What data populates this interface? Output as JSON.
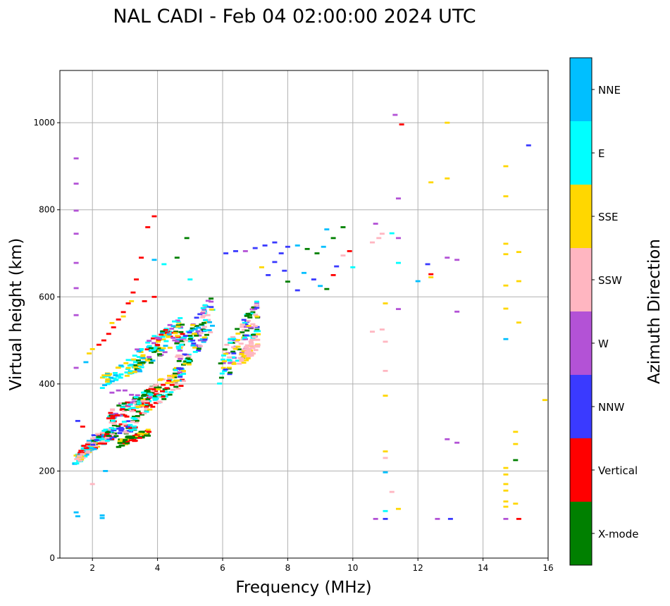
{
  "chart_data": {
    "type": "scatter",
    "title": "NAL CADI - Feb 04 02:00:00 2024 UTC",
    "xlabel": "Frequency (MHz)",
    "ylabel": "Virtual height (km)",
    "xlim": [
      1.0,
      16.0
    ],
    "ylim": [
      0,
      1120
    ],
    "xticks": [
      2,
      4,
      6,
      8,
      10,
      12,
      14,
      16
    ],
    "yticks": [
      0,
      200,
      400,
      600,
      800,
      1000
    ],
    "grid": true,
    "colorbar": {
      "label": "Azimuth Direction",
      "categories": [
        {
          "name": "X-mode",
          "color": "#008000"
        },
        {
          "name": "Vertical",
          "color": "#ff0000"
        },
        {
          "name": "NNW",
          "color": "#3a3aff"
        },
        {
          "name": "W",
          "color": "#b352d6"
        },
        {
          "name": "SSW",
          "color": "#ffb6c1"
        },
        {
          "name": "SSE",
          "color": "#ffd700"
        },
        {
          "name": "E",
          "color": "#00ffff"
        },
        {
          "name": "NNE",
          "color": "#00bfff"
        }
      ]
    },
    "echoes": [
      {
        "f": 1.5,
        "h": 918,
        "az": "W"
      },
      {
        "f": 1.5,
        "h": 860,
        "az": "W"
      },
      {
        "f": 1.5,
        "h": 798,
        "az": "W"
      },
      {
        "f": 1.5,
        "h": 745,
        "az": "W"
      },
      {
        "f": 1.5,
        "h": 678,
        "az": "W"
      },
      {
        "f": 1.5,
        "h": 620,
        "az": "W"
      },
      {
        "f": 1.5,
        "h": 558,
        "az": "W"
      },
      {
        "f": 1.5,
        "h": 437,
        "az": "W"
      },
      {
        "f": 1.5,
        "h": 105,
        "az": "NNE"
      },
      {
        "f": 1.55,
        "h": 96,
        "az": "NNE"
      },
      {
        "f": 2.3,
        "h": 98,
        "az": "NNE"
      },
      {
        "f": 2.3,
        "h": 92,
        "az": "NNE"
      },
      {
        "f": 1.55,
        "h": 315,
        "az": "NNW"
      },
      {
        "f": 1.7,
        "h": 302,
        "az": "Vertical"
      },
      {
        "f": 2.0,
        "h": 170,
        "az": "SSW"
      },
      {
        "f": 2.4,
        "h": 200,
        "az": "NNE"
      },
      {
        "f": 2.2,
        "h": 490,
        "az": "Vertical"
      },
      {
        "f": 2.35,
        "h": 500,
        "az": "Vertical"
      },
      {
        "f": 2.5,
        "h": 515,
        "az": "Vertical"
      },
      {
        "f": 2.65,
        "h": 530,
        "az": "Vertical"
      },
      {
        "f": 2.8,
        "h": 548,
        "az": "Vertical"
      },
      {
        "f": 2.95,
        "h": 565,
        "az": "Vertical"
      },
      {
        "f": 3.1,
        "h": 585,
        "az": "Vertical"
      },
      {
        "f": 3.25,
        "h": 610,
        "az": "Vertical"
      },
      {
        "f": 3.35,
        "h": 640,
        "az": "Vertical"
      },
      {
        "f": 2.0,
        "h": 480,
        "az": "SSE"
      },
      {
        "f": 2.6,
        "h": 540,
        "az": "SSE"
      },
      {
        "f": 2.95,
        "h": 555,
        "az": "SSE"
      },
      {
        "f": 3.2,
        "h": 590,
        "az": "SSE"
      },
      {
        "f": 1.9,
        "h": 470,
        "az": "SSE"
      },
      {
        "f": 1.8,
        "h": 450,
        "az": "NNE"
      },
      {
        "f": 2.5,
        "h": 410,
        "az": "E"
      },
      {
        "f": 2.7,
        "h": 425,
        "az": "E"
      },
      {
        "f": 2.9,
        "h": 440,
        "az": "E"
      },
      {
        "f": 3.1,
        "h": 455,
        "az": "E"
      },
      {
        "f": 3.3,
        "h": 465,
        "az": "E"
      },
      {
        "f": 3.5,
        "h": 480,
        "az": "E"
      },
      {
        "f": 3.7,
        "h": 495,
        "az": "E"
      },
      {
        "f": 3.9,
        "h": 510,
        "az": "E"
      },
      {
        "f": 2.6,
        "h": 380,
        "az": "W"
      },
      {
        "f": 2.8,
        "h": 385,
        "az": "W"
      },
      {
        "f": 3.0,
        "h": 385,
        "az": "W"
      },
      {
        "f": 3.2,
        "h": 375,
        "az": "W"
      },
      {
        "f": 3.6,
        "h": 590,
        "az": "Vertical"
      },
      {
        "f": 3.9,
        "h": 600,
        "az": "Vertical"
      },
      {
        "f": 3.5,
        "h": 690,
        "az": "Vertical"
      },
      {
        "f": 3.7,
        "h": 760,
        "az": "Vertical"
      },
      {
        "f": 3.9,
        "h": 785,
        "az": "Vertical"
      },
      {
        "f": 3.9,
        "h": 685,
        "az": "NNE"
      },
      {
        "f": 4.2,
        "h": 675,
        "az": "E"
      },
      {
        "f": 4.6,
        "h": 690,
        "az": "X-mode"
      },
      {
        "f": 4.9,
        "h": 735,
        "az": "X-mode"
      },
      {
        "f": 5.0,
        "h": 640,
        "az": "E"
      },
      {
        "f": 6.1,
        "h": 700,
        "az": "NNW"
      },
      {
        "f": 6.4,
        "h": 705,
        "az": "NNW"
      },
      {
        "f": 6.7,
        "h": 705,
        "az": "W"
      },
      {
        "f": 7.0,
        "h": 712,
        "az": "NNW"
      },
      {
        "f": 7.3,
        "h": 718,
        "az": "NNW"
      },
      {
        "f": 7.6,
        "h": 725,
        "az": "NNW"
      },
      {
        "f": 7.8,
        "h": 700,
        "az": "NNW"
      },
      {
        "f": 8.0,
        "h": 715,
        "az": "NNW"
      },
      {
        "f": 8.3,
        "h": 718,
        "az": "NNE"
      },
      {
        "f": 8.6,
        "h": 710,
        "az": "X-mode"
      },
      {
        "f": 8.9,
        "h": 700,
        "az": "X-mode"
      },
      {
        "f": 9.1,
        "h": 715,
        "az": "NNE"
      },
      {
        "f": 9.4,
        "h": 735,
        "az": "X-mode"
      },
      {
        "f": 7.6,
        "h": 680,
        "az": "NNW"
      },
      {
        "f": 7.9,
        "h": 660,
        "az": "NNW"
      },
      {
        "f": 8.0,
        "h": 635,
        "az": "X-mode"
      },
      {
        "f": 8.3,
        "h": 615,
        "az": "NNW"
      },
      {
        "f": 8.5,
        "h": 655,
        "az": "NNE"
      },
      {
        "f": 8.8,
        "h": 640,
        "az": "NNW"
      },
      {
        "f": 9.0,
        "h": 625,
        "az": "NNE"
      },
      {
        "f": 9.2,
        "h": 618,
        "az": "X-mode"
      },
      {
        "f": 9.4,
        "h": 650,
        "az": "Vertical"
      },
      {
        "f": 9.5,
        "h": 670,
        "az": "NNW"
      },
      {
        "f": 9.7,
        "h": 695,
        "az": "SSW"
      },
      {
        "f": 9.9,
        "h": 705,
        "az": "Vertical"
      },
      {
        "f": 10.0,
        "h": 668,
        "az": "E"
      },
      {
        "f": 9.2,
        "h": 755,
        "az": "NNE"
      },
      {
        "f": 9.7,
        "h": 760,
        "az": "X-mode"
      },
      {
        "f": 7.4,
        "h": 650,
        "az": "NNW"
      },
      {
        "f": 7.2,
        "h": 668,
        "az": "SSE"
      },
      {
        "f": 10.7,
        "h": 768,
        "az": "W"
      },
      {
        "f": 10.6,
        "h": 725,
        "az": "SSW"
      },
      {
        "f": 10.8,
        "h": 735,
        "az": "SSW"
      },
      {
        "f": 10.9,
        "h": 745,
        "az": "SSW"
      },
      {
        "f": 11.3,
        "h": 1018,
        "az": "W"
      },
      {
        "f": 11.5,
        "h": 996,
        "az": "Vertical"
      },
      {
        "f": 11.4,
        "h": 826,
        "az": "W"
      },
      {
        "f": 11.2,
        "h": 746,
        "az": "E"
      },
      {
        "f": 11.4,
        "h": 735,
        "az": "W"
      },
      {
        "f": 11.4,
        "h": 678,
        "az": "E"
      },
      {
        "f": 11.0,
        "h": 585,
        "az": "SSE"
      },
      {
        "f": 11.4,
        "h": 572,
        "az": "W"
      },
      {
        "f": 10.6,
        "h": 520,
        "az": "SSW"
      },
      {
        "f": 10.9,
        "h": 525,
        "az": "SSW"
      },
      {
        "f": 11.0,
        "h": 497,
        "az": "SSW"
      },
      {
        "f": 11.0,
        "h": 430,
        "az": "SSW"
      },
      {
        "f": 11.0,
        "h": 373,
        "az": "SSE"
      },
      {
        "f": 11.0,
        "h": 245,
        "az": "SSE"
      },
      {
        "f": 11.0,
        "h": 230,
        "az": "SSW"
      },
      {
        "f": 11.0,
        "h": 197,
        "az": "NNE"
      },
      {
        "f": 11.2,
        "h": 152,
        "az": "SSW"
      },
      {
        "f": 11.0,
        "h": 108,
        "az": "E"
      },
      {
        "f": 11.4,
        "h": 113,
        "az": "SSE"
      },
      {
        "f": 10.7,
        "h": 90,
        "az": "W"
      },
      {
        "f": 11.0,
        "h": 90,
        "az": "NNW"
      },
      {
        "f": 12.0,
        "h": 636,
        "az": "NNE"
      },
      {
        "f": 12.3,
        "h": 675,
        "az": "NNW"
      },
      {
        "f": 12.4,
        "h": 652,
        "az": "Vertical"
      },
      {
        "f": 12.4,
        "h": 645,
        "az": "SSE"
      },
      {
        "f": 12.4,
        "h": 863,
        "az": "SSE"
      },
      {
        "f": 12.9,
        "h": 872,
        "az": "SSE"
      },
      {
        "f": 12.9,
        "h": 1000,
        "az": "SSE"
      },
      {
        "f": 12.9,
        "h": 690,
        "az": "W"
      },
      {
        "f": 13.2,
        "h": 685,
        "az": "W"
      },
      {
        "f": 13.2,
        "h": 566,
        "az": "W"
      },
      {
        "f": 12.9,
        "h": 273,
        "az": "W"
      },
      {
        "f": 13.2,
        "h": 265,
        "az": "W"
      },
      {
        "f": 12.6,
        "h": 90,
        "az": "W"
      },
      {
        "f": 13.0,
        "h": 90,
        "az": "NNW"
      },
      {
        "f": 14.7,
        "h": 900,
        "az": "SSE"
      },
      {
        "f": 14.7,
        "h": 831,
        "az": "SSE"
      },
      {
        "f": 14.7,
        "h": 722,
        "az": "SSE"
      },
      {
        "f": 14.7,
        "h": 698,
        "az": "SSE"
      },
      {
        "f": 15.1,
        "h": 703,
        "az": "SSE"
      },
      {
        "f": 14.7,
        "h": 626,
        "az": "SSE"
      },
      {
        "f": 15.1,
        "h": 636,
        "az": "SSE"
      },
      {
        "f": 14.7,
        "h": 573,
        "az": "SSE"
      },
      {
        "f": 15.1,
        "h": 541,
        "az": "SSE"
      },
      {
        "f": 14.7,
        "h": 503,
        "az": "NNE"
      },
      {
        "f": 15.9,
        "h": 363,
        "az": "SSE"
      },
      {
        "f": 15.0,
        "h": 290,
        "az": "SSE"
      },
      {
        "f": 15.0,
        "h": 262,
        "az": "SSE"
      },
      {
        "f": 15.0,
        "h": 225,
        "az": "X-mode"
      },
      {
        "f": 14.7,
        "h": 207,
        "az": "SSE"
      },
      {
        "f": 14.7,
        "h": 192,
        "az": "SSE"
      },
      {
        "f": 14.7,
        "h": 170,
        "az": "SSE"
      },
      {
        "f": 14.7,
        "h": 155,
        "az": "SSE"
      },
      {
        "f": 14.7,
        "h": 130,
        "az": "SSE"
      },
      {
        "f": 14.7,
        "h": 118,
        "az": "SSE"
      },
      {
        "f": 15.0,
        "h": 125,
        "az": "SSE"
      },
      {
        "f": 14.7,
        "h": 90,
        "az": "W"
      },
      {
        "f": 15.1,
        "h": 90,
        "az": "Vertical"
      },
      {
        "f": 15.4,
        "h": 948,
        "az": "NNW"
      }
    ],
    "clusters": [
      {
        "f0": 1.45,
        "f1": 2.0,
        "h0": 210,
        "h1": 270,
        "n": 60,
        "mix": [
          "SSE",
          "Vertical",
          "NNE",
          "E",
          "SSW"
        ]
      },
      {
        "f0": 1.6,
        "f1": 2.6,
        "h0": 230,
        "h1": 300,
        "n": 70,
        "mix": [
          "SSW",
          "Vertical",
          "E",
          "NNE",
          "SSE"
        ]
      },
      {
        "f0": 2.0,
        "f1": 3.4,
        "h0": 250,
        "h1": 330,
        "n": 90,
        "mix": [
          "Vertical",
          "SSW",
          "NNW",
          "E",
          "X-mode"
        ]
      },
      {
        "f0": 2.8,
        "f1": 3.8,
        "h0": 255,
        "h1": 300,
        "n": 60,
        "mix": [
          "X-mode",
          "X-mode",
          "Vertical",
          "SSE"
        ]
      },
      {
        "f0": 2.5,
        "f1": 4.0,
        "h0": 300,
        "h1": 400,
        "n": 100,
        "mix": [
          "Vertical",
          "SSW",
          "X-mode",
          "W",
          "E"
        ]
      },
      {
        "f0": 3.4,
        "f1": 4.8,
        "h0": 320,
        "h1": 450,
        "n": 110,
        "mix": [
          "X-mode",
          "SSE",
          "Vertical",
          "SSW",
          "E"
        ]
      },
      {
        "f0": 2.3,
        "f1": 3.6,
        "h0": 390,
        "h1": 470,
        "n": 60,
        "mix": [
          "E",
          "SSE",
          "E",
          "NNE"
        ]
      },
      {
        "f0": 3.3,
        "f1": 4.8,
        "h0": 420,
        "h1": 560,
        "n": 110,
        "mix": [
          "X-mode",
          "E",
          "SSE",
          "Vertical",
          "W",
          "NNE"
        ]
      },
      {
        "f0": 4.6,
        "f1": 5.7,
        "h0": 400,
        "h1": 610,
        "n": 130,
        "mix": [
          "E",
          "NNE",
          "SSE",
          "W",
          "NNW",
          "SSW",
          "X-mode"
        ]
      },
      {
        "f0": 5.9,
        "f1": 7.1,
        "h0": 380,
        "h1": 600,
        "n": 120,
        "mix": [
          "SSW",
          "SSE",
          "W",
          "E",
          "NNW",
          "X-mode"
        ]
      },
      {
        "f0": 6.5,
        "f1": 7.1,
        "h0": 430,
        "h1": 520,
        "n": 50,
        "mix": [
          "SSW",
          "SSW",
          "SSE"
        ]
      }
    ]
  }
}
